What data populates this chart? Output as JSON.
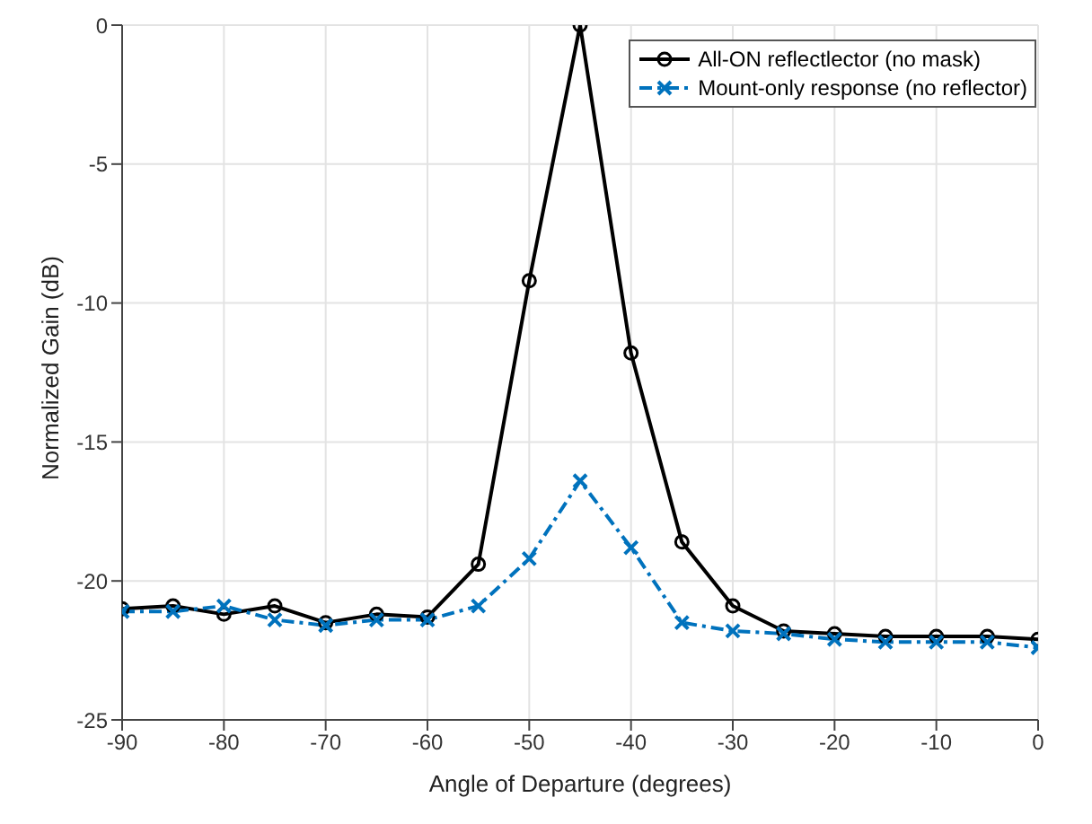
{
  "chart_data": {
    "type": "line",
    "xlabel": "Angle of Departure (degrees)",
    "ylabel": "Normalized Gain (dB)",
    "x": [
      -90,
      -85,
      -80,
      -75,
      -70,
      -65,
      -60,
      -55,
      -50,
      -45,
      -40,
      -35,
      -30,
      -25,
      -20,
      -15,
      -10,
      -5,
      0
    ],
    "series": [
      {
        "name": "All-ON reflectlector (no mask)",
        "color": "#000000",
        "marker": "circle",
        "line_style": "solid",
        "values": [
          -21.0,
          -20.9,
          -21.2,
          -20.9,
          -21.5,
          -21.2,
          -21.3,
          -19.4,
          -9.2,
          0,
          -11.8,
          -18.6,
          -20.9,
          -21.8,
          -21.9,
          -22.0,
          -22.0,
          -22.0,
          -22.1
        ]
      },
      {
        "name": "Mount-only response (no reflector)",
        "color": "#0072bd",
        "marker": "cross",
        "line_style": "dashed",
        "values": [
          -21.1,
          -21.1,
          -20.9,
          -21.4,
          -21.6,
          -21.4,
          -21.4,
          -20.9,
          -19.2,
          -16.4,
          -18.8,
          -21.5,
          -21.8,
          -21.9,
          -22.1,
          -22.2,
          -22.2,
          -22.2,
          -22.4
        ]
      }
    ],
    "xlim": [
      -90,
      0
    ],
    "xticks": [
      -90,
      -80,
      -70,
      -60,
      -50,
      -40,
      -30,
      -20,
      -10,
      0
    ],
    "ylim": [
      -25,
      0
    ],
    "yticks": [
      -25,
      -20,
      -15,
      -10,
      -5,
      0
    ],
    "grid": true,
    "legend": "top right"
  }
}
